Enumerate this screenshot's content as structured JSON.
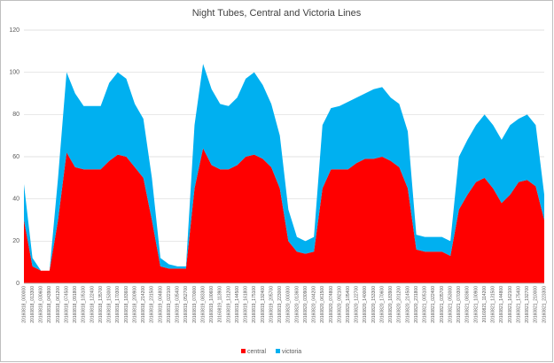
{
  "chart_data": {
    "type": "area",
    "stacked": true,
    "title": "Night Tubes, Central and Victoria Lines",
    "categories": [
      "20160818_000000",
      "20160818_013300",
      "20160818_030600",
      "20160818_043900",
      "20160818_061200",
      "20160818_074500",
      "20160818_091800",
      "20160818_105100",
      "20160818_122400",
      "20160818_135700",
      "20160818_153000",
      "20160818_170300",
      "20160818_183600",
      "20160818_200900",
      "20160818_214200",
      "20160818_231500",
      "20160819_004800",
      "20160819_022100",
      "20160819_035400",
      "20160819_052700",
      "20160819_070000",
      "20160819_083300",
      "20160819_100600",
      "20160819_113900",
      "20160819_131200",
      "20160819_144500",
      "20160819_161800",
      "20160819_175100",
      "20160819_192400",
      "20160819_205700",
      "20160819_223000",
      "20160820_000300",
      "20160820_013600",
      "20160820_030900",
      "20160820_044200",
      "20160820_061500",
      "20160820_074800",
      "20160820_092100",
      "20160820_105400",
      "20160820_122700",
      "20160820_140000",
      "20160820_153300",
      "20160820_170600",
      "20160820_183900",
      "20160820_201200",
      "20160820_214500",
      "20160820_231800",
      "20160821_005100",
      "20160821_022400",
      "20160821_035700",
      "20160821_053000",
      "20160821_070300",
      "20160821_083600",
      "20160821_100900",
      "20160821_114200",
      "20160821_131500",
      "20160821_144800",
      "20160821_162100",
      "20160821_175400",
      "20160821_192700",
      "20160821_210000",
      "20160821_223300"
    ],
    "series": [
      {
        "name": "central",
        "color": "#ff0000",
        "values": [
          30,
          8,
          6,
          6,
          30,
          62,
          55,
          54,
          54,
          54,
          58,
          61,
          60,
          55,
          50,
          30,
          8,
          7,
          7,
          7,
          45,
          64,
          56,
          54,
          54,
          56,
          60,
          61,
          59,
          55,
          45,
          20,
          15,
          14,
          15,
          45,
          54,
          54,
          54,
          57,
          59,
          59,
          60,
          58,
          55,
          45,
          16,
          15,
          15,
          15,
          13,
          35,
          42,
          48,
          50,
          45,
          38,
          42,
          48,
          49,
          46,
          30
        ]
      },
      {
        "name": "victoria",
        "color": "#00b0f0",
        "values": [
          17,
          4,
          0,
          0,
          20,
          38,
          35,
          30,
          30,
          30,
          37,
          39,
          37,
          30,
          28,
          20,
          4,
          2,
          1,
          1,
          30,
          40,
          36,
          31,
          30,
          32,
          37,
          39,
          35,
          30,
          25,
          15,
          7,
          6,
          7,
          30,
          29,
          30,
          32,
          31,
          31,
          33,
          33,
          30,
          30,
          27,
          7,
          7,
          7,
          7,
          7,
          25,
          26,
          27,
          30,
          30,
          30,
          33,
          30,
          31,
          29,
          12
        ]
      }
    ],
    "ylim": [
      0,
      120
    ],
    "yticks": [
      0,
      20,
      40,
      60,
      80,
      100,
      120
    ],
    "grid": true,
    "legend": "bottom"
  }
}
